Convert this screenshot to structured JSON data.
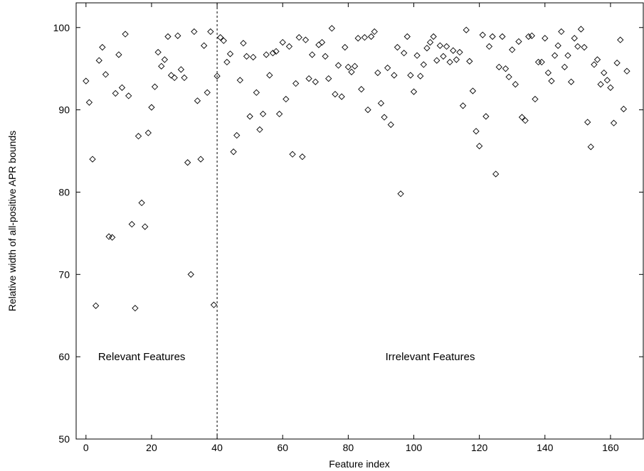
{
  "chart_data": {
    "type": "scatter",
    "title": "",
    "xlabel": "Feature index",
    "ylabel": "Relative width of all-positive APR bounds",
    "xlim": [
      -3,
      170
    ],
    "ylim": [
      50,
      103
    ],
    "xticks": [
      0,
      20,
      40,
      60,
      80,
      100,
      120,
      140,
      160
    ],
    "yticks": [
      50,
      60,
      70,
      80,
      90,
      100
    ],
    "grid": false,
    "marker": "diamond-open",
    "separator_x": 40,
    "annotations": [
      {
        "text": "Relevant Features",
        "x": 17,
        "y": 60
      },
      {
        "text": "Irrelevant Features",
        "x": 105,
        "y": 60
      }
    ],
    "series": [
      {
        "x": [
          0,
          1,
          2,
          3,
          4,
          5,
          6,
          7,
          8,
          9,
          10,
          11,
          12,
          13,
          14,
          15,
          16,
          17,
          18,
          19,
          20,
          21,
          22,
          23,
          24,
          25,
          26,
          27,
          28,
          29,
          30,
          31,
          32,
          33,
          34,
          35,
          36,
          37,
          38,
          39,
          40,
          41,
          42,
          43,
          44,
          45,
          46,
          47,
          48,
          49,
          50,
          51,
          52,
          53,
          54,
          55,
          56,
          57,
          58,
          59,
          60,
          61,
          62,
          63,
          64,
          65,
          66,
          67,
          68,
          69,
          70,
          71,
          72,
          73,
          74,
          75,
          76,
          77,
          78,
          79,
          80,
          81,
          82,
          83,
          84,
          85,
          86,
          87,
          88,
          89,
          90,
          91,
          92,
          93,
          94,
          95,
          96,
          97,
          98,
          99,
          100,
          101,
          102,
          103,
          104,
          105,
          106,
          107,
          108,
          109,
          110,
          111,
          112,
          113,
          114,
          115,
          116,
          117,
          118,
          119,
          120,
          121,
          122,
          123,
          124,
          125,
          126,
          127,
          128,
          129,
          130,
          131,
          132,
          133,
          134,
          135,
          136,
          137,
          138,
          139,
          140,
          141,
          142,
          143,
          144,
          145,
          146,
          147,
          148,
          149,
          150,
          151,
          152,
          153,
          154,
          155,
          156,
          157,
          158,
          159,
          160,
          161,
          162,
          163,
          164,
          165
        ],
        "y": [
          93.5,
          90.9,
          84.0,
          66.2,
          96.0,
          97.6,
          94.3,
          74.6,
          74.5,
          92.0,
          96.7,
          92.7,
          99.2,
          91.7,
          76.1,
          65.9,
          86.8,
          78.7,
          75.8,
          87.2,
          90.3,
          92.8,
          97.0,
          95.3,
          96.1,
          98.9,
          94.2,
          93.9,
          99.0,
          94.9,
          93.9,
          83.6,
          70.0,
          99.5,
          91.1,
          84.0,
          97.8,
          92.1,
          99.5,
          66.3,
          94.1,
          98.8,
          98.4,
          95.8,
          96.8,
          84.9,
          86.9,
          93.6,
          98.1,
          96.5,
          89.2,
          96.4,
          92.1,
          87.6,
          89.5,
          96.7,
          94.2,
          96.9,
          97.1,
          89.5,
          98.2,
          91.3,
          97.7,
          84.6,
          93.2,
          98.8,
          84.3,
          98.5,
          93.8,
          96.7,
          93.4,
          97.9,
          98.2,
          96.5,
          93.8,
          99.9,
          91.9,
          95.4,
          91.6,
          97.6,
          95.2,
          94.6,
          95.3,
          98.7,
          92.5,
          98.8,
          90.0,
          98.9,
          99.5,
          94.5,
          90.8,
          89.1,
          95.1,
          88.2,
          94.2,
          97.6,
          79.8,
          96.9,
          98.9,
          94.2,
          92.2,
          96.6,
          94.1,
          95.5,
          97.5,
          98.2,
          98.9,
          96.0,
          97.8,
          96.5,
          97.7,
          95.8,
          97.2,
          96.1,
          97.0,
          90.5,
          99.7,
          95.9,
          92.3,
          87.4,
          85.6,
          99.1,
          89.2,
          97.7,
          98.9,
          82.2,
          95.2,
          98.9,
          95.0,
          94.0,
          97.3,
          93.1,
          98.3,
          89.1,
          88.7,
          98.9,
          99.0,
          91.3,
          95.8,
          95.8,
          98.7,
          94.5,
          93.5,
          96.6,
          97.8,
          99.5,
          95.2,
          96.6,
          93.4,
          98.7,
          97.7,
          99.8,
          97.6,
          88.5,
          85.5,
          95.5,
          96.1,
          93.1,
          94.5,
          93.6,
          92.7,
          88.4,
          95.7,
          98.5,
          90.1,
          94.7
        ]
      }
    ]
  }
}
